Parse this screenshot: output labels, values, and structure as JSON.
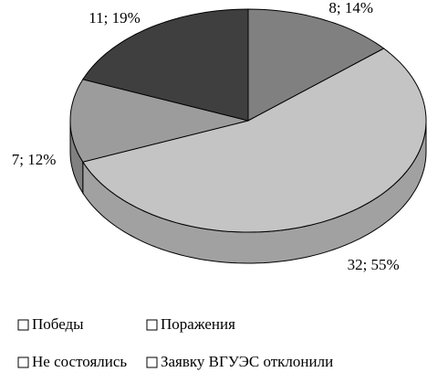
{
  "chart_data": {
    "type": "pie3d",
    "categories": [
      "Победы",
      "Поражения",
      "Не состоялись",
      "Заявку ВГУЭС отклонили"
    ],
    "values": [
      8,
      32,
      7,
      11
    ],
    "value_labels": [
      "8; 14%",
      "32; 55%",
      "7; 12%",
      "11; 19%"
    ],
    "colors": [
      "#808080",
      "#c4c4c4",
      "#9c9c9c",
      "#3f3f3f"
    ],
    "legend": "bottom"
  }
}
